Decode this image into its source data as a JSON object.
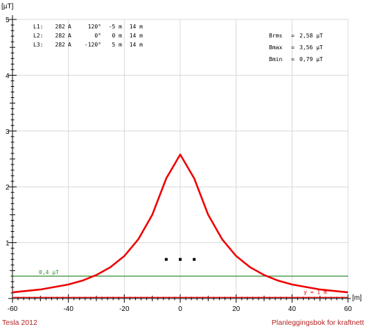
{
  "chart_data": {
    "type": "line",
    "ylabel": "[µT]",
    "xlabel": "[m]",
    "xlim": [
      -60,
      60
    ],
    "ylim": [
      0,
      5
    ],
    "x_ticks": [
      -60,
      -40,
      -20,
      0,
      20,
      40,
      60
    ],
    "y_ticks": [
      1,
      2,
      3,
      4,
      5
    ],
    "grid": true,
    "legend_lines": [
      {
        "phase": "L1:",
        "current": "282",
        "unit": "A",
        "angle": "120°",
        "x": "-5 m",
        "h": "14 m"
      },
      {
        "phase": "L2:",
        "current": "282",
        "unit": "A",
        "angle": "0°",
        "x": "0 m",
        "h": "14 m"
      },
      {
        "phase": "L3:",
        "current": "282",
        "unit": "A",
        "angle": "-120°",
        "x": "5 m",
        "h": "14 m"
      }
    ],
    "stats": [
      {
        "label": "Brms",
        "value": "2,58 µT"
      },
      {
        "label": "Bmax",
        "value": "3,56 µT"
      },
      {
        "label": "Bmin",
        "value": "0,79 µT"
      }
    ],
    "series": [
      {
        "x": [
          -60,
          -50,
          -40,
          -35,
          -30,
          -25,
          -20,
          -15,
          -10,
          -5,
          0,
          5,
          10,
          15,
          20,
          25,
          30,
          35,
          40,
          50,
          60
        ],
        "y": [
          0.11,
          0.16,
          0.25,
          0.32,
          0.42,
          0.56,
          0.76,
          1.06,
          1.5,
          2.15,
          2.58,
          2.15,
          1.5,
          1.06,
          0.76,
          0.56,
          0.42,
          0.32,
          0.25,
          0.16,
          0.11
        ],
        "color": "#ee0000"
      }
    ],
    "conductors": [
      {
        "x": -5,
        "y": 0.7
      },
      {
        "x": 0,
        "y": 0.7
      },
      {
        "x": 5,
        "y": 0.7
      }
    ],
    "reference_line": {
      "y": 0.4,
      "label": "0,4 µT",
      "color": "#2e8b2e"
    },
    "height_line": {
      "y": 0.02,
      "label": "y = 1 m",
      "color": "#ee0000"
    },
    "footer_left": "Tesla 2012",
    "footer_right": "Planleggingsbok for kraftnett"
  }
}
